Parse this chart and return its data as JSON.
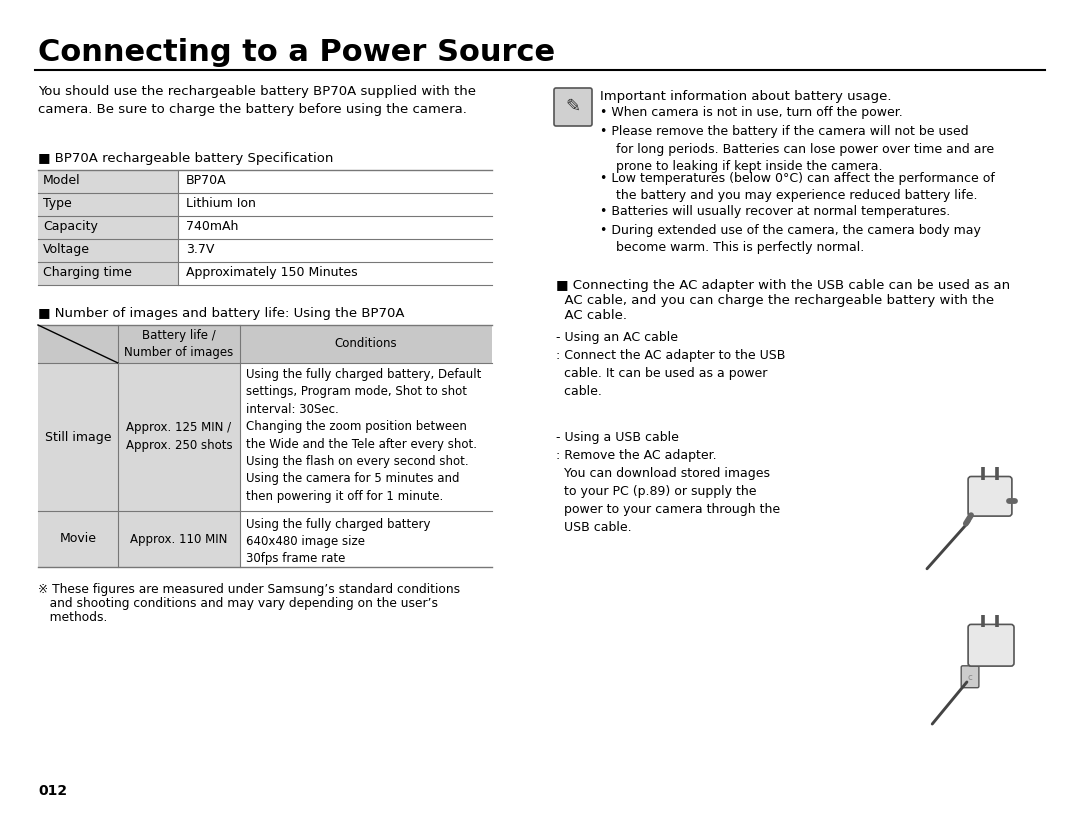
{
  "title": "Connecting to a Power Source",
  "bg_color": "#ffffff",
  "intro_text": "You should use the rechargeable battery BP70A supplied with the\ncamera. Be sure to charge the battery before using the camera.",
  "spec_header": "■ BP70A rechargeable battery Specification",
  "spec_rows": [
    [
      "Model",
      "BP70A"
    ],
    [
      "Type",
      "Lithium Ion"
    ],
    [
      "Capacity",
      "740mAh"
    ],
    [
      "Voltage",
      "3.7V"
    ],
    [
      "Charging time",
      "Approximately 150 Minutes"
    ]
  ],
  "battery_header": "■ Number of images and battery life: Using the BP70A",
  "note_title": "Important information about battery usage.",
  "note_bullets": [
    "When camera is not in use, turn off the power.",
    "Please remove the battery if the camera will not be used\n    for long periods. Batteries can lose power over time and are\n    prone to leaking if kept inside the camera.",
    "Low temperatures (below 0°C) can affect the performance of\n    the battery and you may experience reduced battery life.",
    "Batteries will usually recover at normal temperatures.",
    "During extended use of the camera, the camera body may\n    become warm. This is perfectly normal."
  ],
  "ac_section_line1": "■ Connecting the AC adapter with the USB cable can be used as an",
  "ac_section_line2": "  AC cable, and you can charge the rechargeable battery with the",
  "ac_section_line3": "  AC cable.",
  "ac_cable_text": "- Using an AC cable\n: Connect the AC adapter to the USB\n  cable. It can be used as a power\n  cable.",
  "usb_cable_text": "- Using a USB cable\n: Remove the AC adapter.\n  You can download stored images\n  to your PC (p.89) or supply the\n  power to your camera through the\n  USB cable.",
  "footnote_line1": "※ These figures are measured under Samsung’s standard conditions",
  "footnote_line2": "   and shooting conditions and may vary depending on the user’s",
  "footnote_line3": "   methods.",
  "page_num": "012",
  "table_header_bg": "#c8c8c8",
  "table_row_bg_alt": "#d8d8d8",
  "table_border": "#777777",
  "text_color": "#000000"
}
